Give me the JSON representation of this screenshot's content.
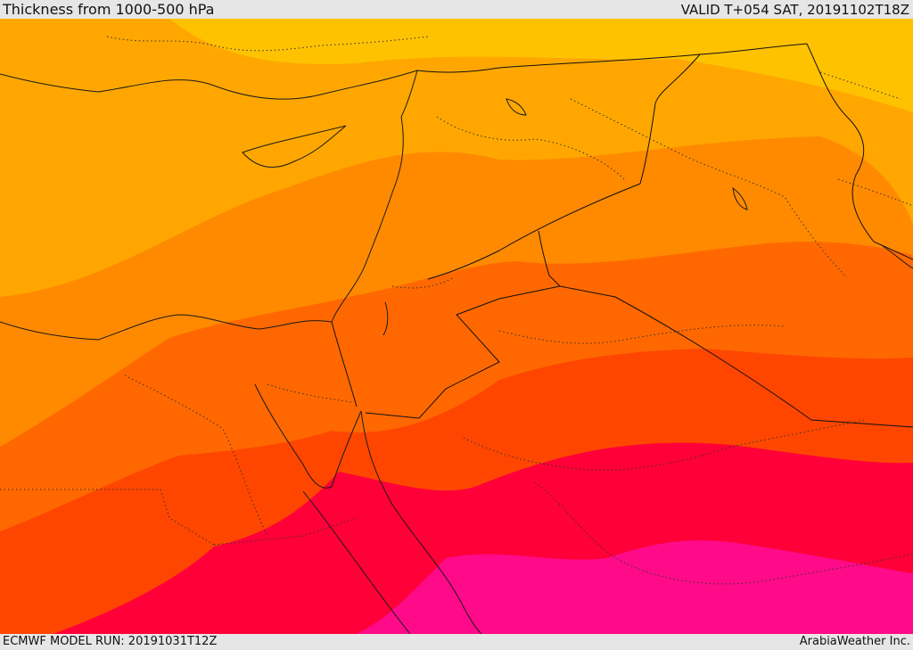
{
  "header": {
    "title": "Thickness from 1000-500 hPa",
    "valid": "VALID T+054 SAT, 20191102T18Z"
  },
  "footer": {
    "model_run": "ECMWF MODEL RUN: 20191031T12Z",
    "credit": "ArabiaWeather Inc."
  },
  "map": {
    "field": "1000-500 hPa thickness",
    "colors": {
      "band1": "#ffc200",
      "band2": "#ffa700",
      "band3": "#ff8a00",
      "band4": "#ff6800",
      "band5": "#ff4600",
      "band6": "#ff0038",
      "band7": "#ff0a88"
    },
    "icons": [
      "country-borders",
      "coastlines",
      "internal-borders"
    ]
  }
}
